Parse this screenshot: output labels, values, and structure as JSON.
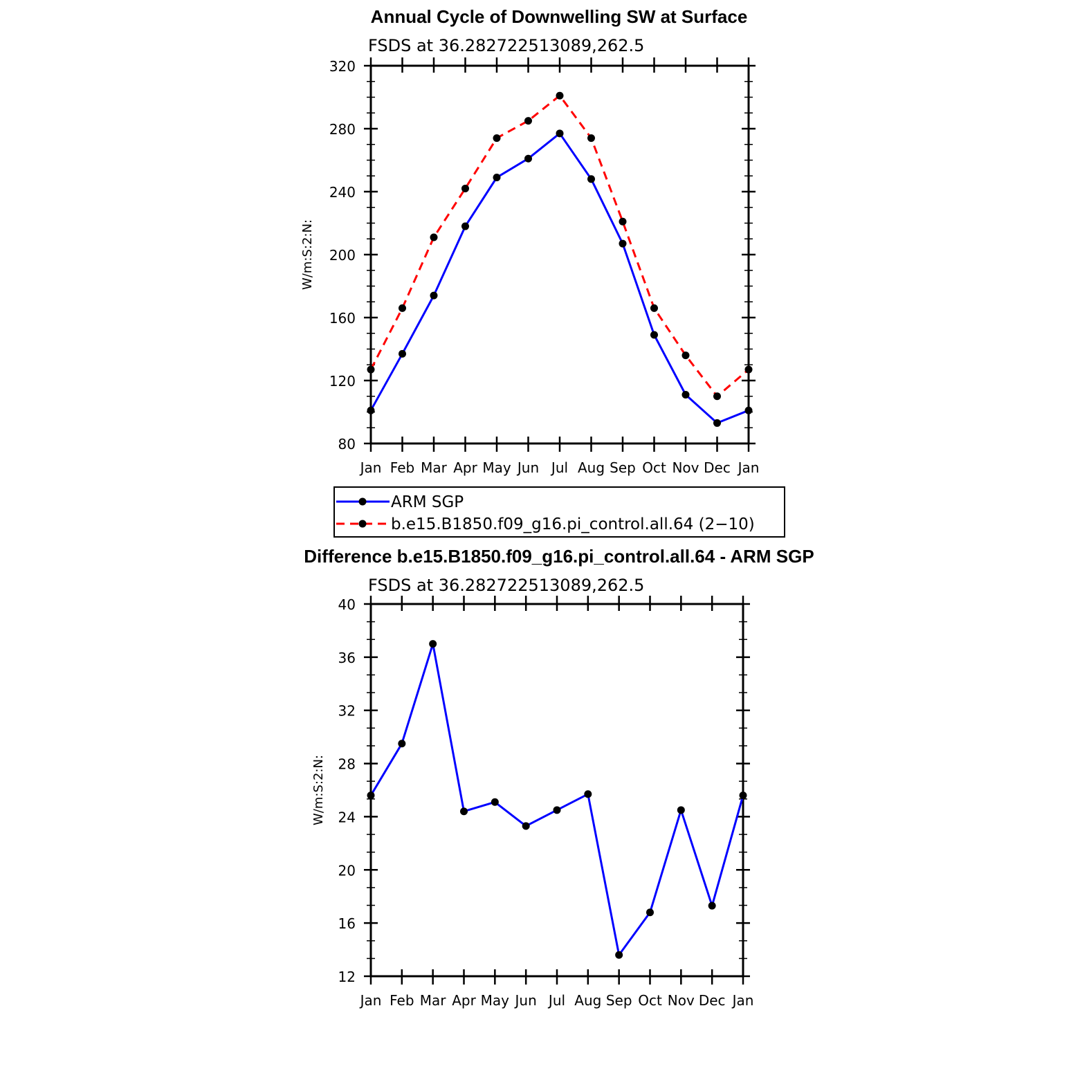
{
  "chart_data": [
    {
      "type": "line",
      "title": "Annual Cycle of Downwelling SW at Surface",
      "subtitle": "FSDS at 36.282722513089,262.5",
      "ylabel": "W/m:S:2:N:",
      "categories": [
        "Jan",
        "Feb",
        "Mar",
        "Apr",
        "May",
        "Jun",
        "Jul",
        "Aug",
        "Sep",
        "Oct",
        "Nov",
        "Dec",
        "Jan"
      ],
      "ylim": [
        80,
        320
      ],
      "yticks": [
        "80",
        "120",
        "160",
        "200",
        "240",
        "280",
        "320"
      ],
      "series": [
        {
          "name": "ARM SGP",
          "color": "#0000ff",
          "dash": "solid",
          "values": [
            101,
            137,
            174,
            218,
            249,
            261,
            277,
            248,
            207,
            149,
            111,
            93,
            101
          ]
        },
        {
          "name": "b.e15.B1850.f09_g16.pi_control.all.64 (2−10)",
          "color": "#ff0000",
          "dash": "dashed",
          "values": [
            127,
            166,
            211,
            242,
            274,
            285,
            301,
            274,
            221,
            166,
            136,
            110,
            127
          ]
        }
      ],
      "legend_position": "below"
    },
    {
      "type": "line",
      "title": "Difference b.e15.B1850.f09_g16.pi_control.all.64 - ARM SGP",
      "subtitle": "FSDS at 36.282722513089,262.5",
      "ylabel": "W/m:S:2:N:",
      "categories": [
        "Jan",
        "Feb",
        "Mar",
        "Apr",
        "May",
        "Jun",
        "Jul",
        "Aug",
        "Sep",
        "Oct",
        "Nov",
        "Dec",
        "Jan"
      ],
      "ylim": [
        12,
        40
      ],
      "yticks": [
        "12",
        "16",
        "20",
        "24",
        "28",
        "32",
        "36",
        "40"
      ],
      "series": [
        {
          "color": "#0000ff",
          "dash": "solid",
          "values": [
            25.6,
            29.5,
            37.0,
            24.4,
            25.1,
            23.3,
            24.5,
            25.7,
            13.6,
            16.8,
            24.5,
            17.3,
            25.6
          ]
        }
      ]
    }
  ]
}
